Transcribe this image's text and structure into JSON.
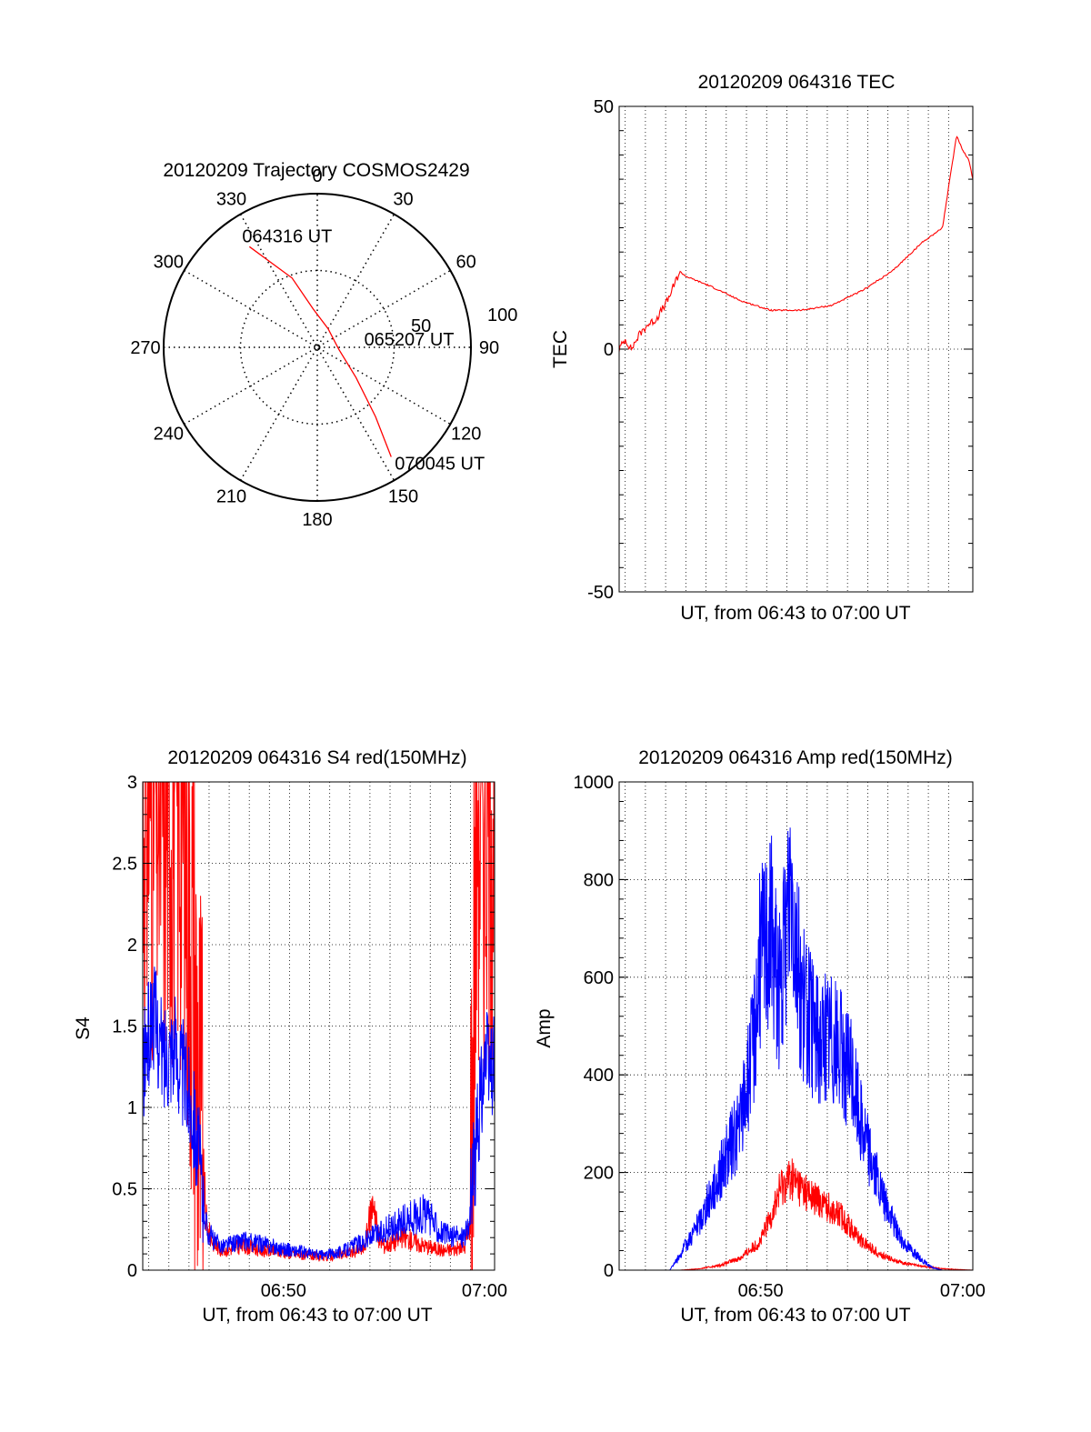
{
  "chart_data": [
    {
      "type": "polar",
      "title": "20120209 Trajectory COSMOS2429",
      "angle_labels": [
        "0",
        "30",
        "60",
        "90",
        "120",
        "150",
        "180",
        "210",
        "240",
        "270",
        "300",
        "330"
      ],
      "radius_labels": [
        "50",
        "100"
      ],
      "radius_range": [
        0,
        100
      ],
      "grid": true,
      "trajectory": {
        "color": "#ff0000",
        "points": [
          {
            "az": 326,
            "r": 79
          },
          {
            "az": 340,
            "r": 48
          },
          {
            "az": 354,
            "r": 25
          },
          {
            "az": 30,
            "r": 14
          },
          {
            "az": 95,
            "r": 14
          },
          {
            "az": 128,
            "r": 32
          },
          {
            "az": 140,
            "r": 59
          },
          {
            "az": 146,
            "r": 86
          }
        ],
        "annotations": [
          {
            "text": "064316 UT",
            "point": 0
          },
          {
            "text": "065207 UT",
            "point": 4
          },
          {
            "text": "070045 UT",
            "point": 7
          }
        ]
      }
    },
    {
      "type": "line",
      "title": "20120209 064316 TEC",
      "xlabel": "UT, from 06:43 to 07:00 UT",
      "ylabel": "TEC",
      "xlim": [
        0,
        17.5
      ],
      "ylim": [
        -50,
        50
      ],
      "yticks": [
        "-50",
        "0",
        "50"
      ],
      "grid": true,
      "series": [
        {
          "color": "#ff0000",
          "x": [
            0.0,
            0.3,
            0.6,
            1.0,
            1.4,
            1.8,
            2.1,
            2.4,
            2.7,
            3.0,
            3.3,
            4.5,
            6.0,
            7.5,
            9.0,
            10.5,
            12.0,
            13.5,
            15.0,
            16.0,
            16.4,
            16.7,
            17.0,
            17.3,
            17.5
          ],
          "y": [
            0,
            2,
            0,
            3,
            5,
            6,
            8,
            10,
            13,
            16,
            15,
            13,
            10,
            8,
            8,
            9,
            12,
            16,
            22,
            25,
            36,
            44,
            41,
            39,
            35
          ]
        }
      ]
    },
    {
      "type": "line",
      "title": "20120209 064316 S4 red(150MHz)",
      "xlabel": "UT, from 06:43 to 07:00 UT",
      "ylabel": "S4",
      "xlim": [
        0,
        17.5
      ],
      "ylim": [
        0,
        3
      ],
      "xticks": [
        "06:50",
        "07:00"
      ],
      "yticks": [
        "0",
        "0.5",
        "1",
        "1.5",
        "2",
        "2.5",
        "3"
      ],
      "grid": true,
      "series": [
        {
          "color": "#ff0000",
          "x": [
            0.0,
            0.5,
            1.0,
            1.5,
            2.0,
            2.5,
            2.9,
            3.2,
            3.6,
            4.0,
            5.0,
            6.0,
            7.0,
            8.0,
            9.0,
            10.0,
            11.0,
            11.5,
            11.7,
            12.0,
            13.0,
            14.0,
            15.0,
            16.0,
            16.3,
            16.6,
            17.0,
            17.3,
            17.5
          ],
          "y": [
            3.0,
            3.0,
            3.0,
            3.0,
            3.0,
            2.0,
            0.8,
            0.25,
            0.15,
            0.12,
            0.15,
            0.12,
            0.11,
            0.09,
            0.08,
            0.1,
            0.13,
            0.45,
            0.2,
            0.15,
            0.2,
            0.15,
            0.12,
            0.14,
            0.3,
            3.0,
            3.0,
            3.0,
            3.0
          ]
        },
        {
          "color": "#0000ff",
          "x": [
            0.0,
            0.5,
            1.0,
            1.5,
            2.0,
            2.5,
            2.9,
            3.2,
            3.6,
            4.0,
            5.0,
            6.0,
            7.0,
            8.0,
            9.0,
            10.0,
            11.0,
            12.0,
            13.0,
            14.0,
            15.0,
            15.8,
            16.2,
            16.6,
            17.0,
            17.3,
            17.5
          ],
          "y": [
            1.2,
            1.6,
            1.3,
            1.4,
            1.2,
            1.0,
            0.55,
            0.25,
            0.17,
            0.15,
            0.18,
            0.16,
            0.13,
            0.11,
            0.09,
            0.12,
            0.18,
            0.24,
            0.3,
            0.35,
            0.22,
            0.2,
            0.25,
            0.8,
            1.3,
            1.2,
            1.3
          ]
        }
      ]
    },
    {
      "type": "line",
      "title": "20120209 064316 Amp red(150MHz)",
      "xlabel": "UT, from 06:43 to 07:00 UT",
      "ylabel": "Amp",
      "xlim": [
        0,
        17.5
      ],
      "ylim": [
        0,
        1000
      ],
      "xticks": [
        "06:50",
        "07:00"
      ],
      "yticks": [
        "0",
        "200",
        "400",
        "600",
        "800",
        "1000"
      ],
      "grid": true,
      "series": [
        {
          "color": "#ff0000",
          "x": [
            0.0,
            3.0,
            4.0,
            5.0,
            6.0,
            7.0,
            7.5,
            8.0,
            8.5,
            9.0,
            9.5,
            10.0,
            11.0,
            12.0,
            13.0,
            14.0,
            15.0,
            16.0,
            17.5
          ],
          "y": [
            0,
            0,
            3,
            10,
            25,
            60,
            110,
            170,
            190,
            170,
            150,
            140,
            110,
            60,
            30,
            15,
            8,
            3,
            0
          ]
        },
        {
          "color": "#0000ff",
          "x": [
            0.0,
            2.5,
            3.0,
            4.0,
            5.0,
            6.0,
            6.6,
            7.0,
            7.5,
            8.0,
            8.5,
            9.0,
            9.5,
            10.0,
            10.5,
            11.0,
            11.5,
            12.0,
            13.0,
            14.0,
            15.0,
            15.5,
            16.0,
            17.5
          ],
          "y": [
            0,
            0,
            30,
            100,
            200,
            300,
            450,
            650,
            700,
            560,
            820,
            560,
            500,
            470,
            480,
            440,
            400,
            300,
            150,
            60,
            20,
            5,
            0,
            0
          ]
        }
      ]
    }
  ]
}
